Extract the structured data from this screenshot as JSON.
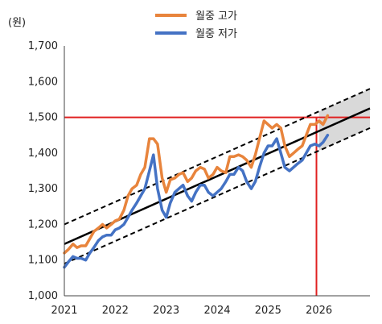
{
  "chart_data": {
    "type": "line",
    "unit_label": "(원)",
    "xlim": [
      2021,
      2027
    ],
    "ylim": [
      1000,
      1700
    ],
    "x_ticks": [
      2021,
      2022,
      2023,
      2024,
      2025,
      2026
    ],
    "y_ticks": [
      1000,
      1100,
      1200,
      1300,
      1400,
      1500,
      1600,
      1700
    ],
    "y_tick_labels": [
      "1,000",
      "1,100",
      "1,200",
      "1,300",
      "1,400",
      "1,500",
      "1,600",
      "1,700"
    ],
    "grid": false,
    "legend_position": "top-center",
    "series": [
      {
        "name": "월중 고가",
        "color": "#E8843C",
        "x": [
          2021.0,
          2021.08,
          2021.17,
          2021.25,
          2021.33,
          2021.42,
          2021.5,
          2021.58,
          2021.67,
          2021.75,
          2021.83,
          2021.92,
          2022.0,
          2022.08,
          2022.17,
          2022.25,
          2022.33,
          2022.42,
          2022.5,
          2022.58,
          2022.67,
          2022.75,
          2022.83,
          2022.92,
          2023.0,
          2023.08,
          2023.17,
          2023.25,
          2023.33,
          2023.42,
          2023.5,
          2023.58,
          2023.67,
          2023.75,
          2023.83,
          2023.92,
          2024.0,
          2024.08,
          2024.17,
          2024.25,
          2024.33,
          2024.42,
          2024.5,
          2024.58,
          2024.67,
          2024.75,
          2024.83,
          2024.92,
          2025.0,
          2025.08,
          2025.17,
          2025.25,
          2025.33,
          2025.42,
          2025.5,
          2025.58,
          2025.67,
          2025.75,
          2025.83,
          2025.92,
          2026.0,
          2026.08,
          2026.17
        ],
        "values": [
          1120,
          1130,
          1145,
          1135,
          1140,
          1140,
          1160,
          1180,
          1190,
          1200,
          1190,
          1200,
          1210,
          1215,
          1240,
          1280,
          1300,
          1310,
          1340,
          1360,
          1440,
          1440,
          1425,
          1330,
          1290,
          1325,
          1330,
          1340,
          1345,
          1320,
          1330,
          1350,
          1360,
          1355,
          1330,
          1340,
          1360,
          1350,
          1345,
          1390,
          1390,
          1395,
          1390,
          1380,
          1360,
          1395,
          1440,
          1490,
          1480,
          1470,
          1480,
          1470,
          1420,
          1390,
          1400,
          1410,
          1420,
          1450,
          1480,
          1480,
          1490,
          1480,
          1505
        ]
      },
      {
        "name": "월중 저가",
        "color": "#4472C4",
        "x": [
          2021.0,
          2021.08,
          2021.17,
          2021.25,
          2021.33,
          2021.42,
          2021.5,
          2021.58,
          2021.67,
          2021.75,
          2021.83,
          2021.92,
          2022.0,
          2022.08,
          2022.17,
          2022.25,
          2022.33,
          2022.42,
          2022.5,
          2022.58,
          2022.67,
          2022.75,
          2022.83,
          2022.92,
          2023.0,
          2023.08,
          2023.17,
          2023.25,
          2023.33,
          2023.42,
          2023.5,
          2023.58,
          2023.67,
          2023.75,
          2023.83,
          2023.92,
          2024.0,
          2024.08,
          2024.17,
          2024.25,
          2024.33,
          2024.42,
          2024.5,
          2024.58,
          2024.67,
          2024.75,
          2024.83,
          2024.92,
          2025.0,
          2025.08,
          2025.17,
          2025.25,
          2025.33,
          2025.42,
          2025.5,
          2025.58,
          2025.67,
          2025.75,
          2025.83,
          2025.92,
          2026.0,
          2026.08,
          2026.17
        ],
        "values": [
          1080,
          1095,
          1110,
          1105,
          1105,
          1100,
          1120,
          1135,
          1155,
          1165,
          1170,
          1170,
          1185,
          1190,
          1200,
          1220,
          1240,
          1260,
          1280,
          1300,
          1350,
          1395,
          1300,
          1240,
          1220,
          1260,
          1290,
          1300,
          1310,
          1280,
          1265,
          1290,
          1310,
          1310,
          1290,
          1280,
          1290,
          1300,
          1320,
          1340,
          1340,
          1360,
          1350,
          1320,
          1300,
          1320,
          1360,
          1400,
          1420,
          1420,
          1440,
          1400,
          1360,
          1350,
          1360,
          1370,
          1380,
          1400,
          1420,
          1425,
          1420,
          1430,
          1450
        ]
      }
    ],
    "trend": {
      "x": [
        2021.0,
        2027.0
      ],
      "center": [
        1145,
        1525
      ],
      "upper": [
        1200,
        1580
      ],
      "lower": [
        1090,
        1470
      ],
      "shade_from": 2026.0,
      "line_color": "#000000",
      "band_color": "#D9D9D9"
    },
    "reference_lines": {
      "y": 1500,
      "x": 2025.95,
      "color": "#E02020"
    }
  }
}
